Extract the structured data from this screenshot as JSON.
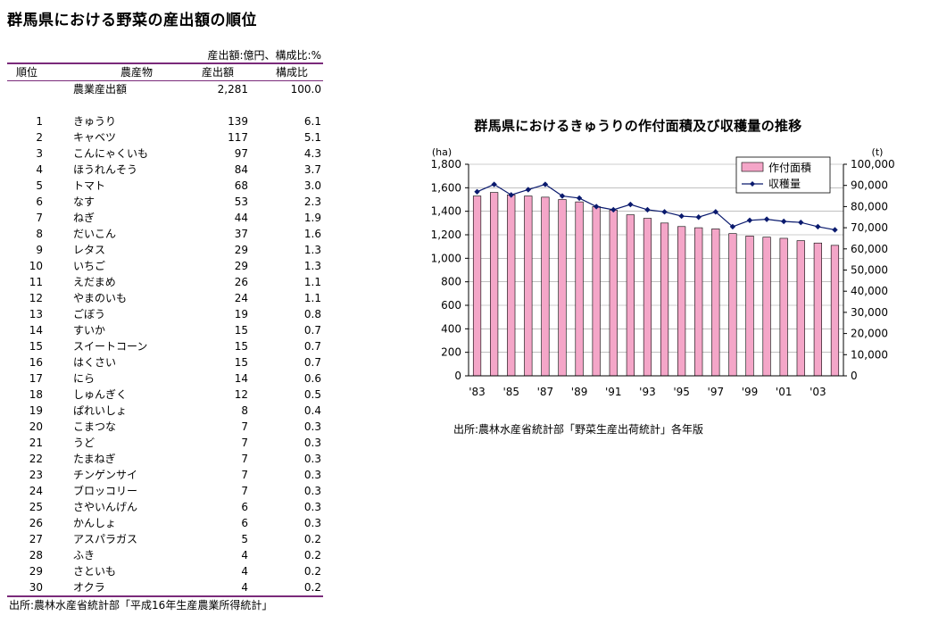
{
  "page_title": "群馬県における野菜の産出額の順位",
  "table": {
    "unit_note": "産出額:億円、構成比:%",
    "headers": {
      "rank": "順位",
      "product": "農産物",
      "amount": "産出額",
      "share": "構成比"
    },
    "total": {
      "label": "農業産出額",
      "amount": "2,281",
      "share": "100.0"
    },
    "rows": [
      {
        "rank": "1",
        "name": "きゅうり",
        "amount": "139",
        "share": "6.1"
      },
      {
        "rank": "2",
        "name": "キャベツ",
        "amount": "117",
        "share": "5.1"
      },
      {
        "rank": "3",
        "name": "こんにゃくいも",
        "amount": "97",
        "share": "4.3"
      },
      {
        "rank": "4",
        "name": "ほうれんそう",
        "amount": "84",
        "share": "3.7"
      },
      {
        "rank": "5",
        "name": "トマト",
        "amount": "68",
        "share": "3.0"
      },
      {
        "rank": "6",
        "name": "なす",
        "amount": "53",
        "share": "2.3"
      },
      {
        "rank": "7",
        "name": "ねぎ",
        "amount": "44",
        "share": "1.9"
      },
      {
        "rank": "8",
        "name": "だいこん",
        "amount": "37",
        "share": "1.6"
      },
      {
        "rank": "9",
        "name": "レタス",
        "amount": "29",
        "share": "1.3"
      },
      {
        "rank": "10",
        "name": "いちご",
        "amount": "29",
        "share": "1.3"
      },
      {
        "rank": "11",
        "name": "えだまめ",
        "amount": "26",
        "share": "1.1"
      },
      {
        "rank": "12",
        "name": "やまのいも",
        "amount": "24",
        "share": "1.1"
      },
      {
        "rank": "13",
        "name": "ごぼう",
        "amount": "19",
        "share": "0.8"
      },
      {
        "rank": "14",
        "name": "すいか",
        "amount": "15",
        "share": "0.7"
      },
      {
        "rank": "15",
        "name": "スイートコーン",
        "amount": "15",
        "share": "0.7"
      },
      {
        "rank": "16",
        "name": "はくさい",
        "amount": "15",
        "share": "0.7"
      },
      {
        "rank": "17",
        "name": "にら",
        "amount": "14",
        "share": "0.6"
      },
      {
        "rank": "18",
        "name": "しゅんぎく",
        "amount": "12",
        "share": "0.5"
      },
      {
        "rank": "19",
        "name": "ぱれいしょ",
        "amount": "8",
        "share": "0.4"
      },
      {
        "rank": "20",
        "name": "こまつな",
        "amount": "7",
        "share": "0.3"
      },
      {
        "rank": "21",
        "name": "うど",
        "amount": "7",
        "share": "0.3"
      },
      {
        "rank": "22",
        "name": "たまねぎ",
        "amount": "7",
        "share": "0.3"
      },
      {
        "rank": "23",
        "name": "チンゲンサイ",
        "amount": "7",
        "share": "0.3"
      },
      {
        "rank": "24",
        "name": "ブロッコリー",
        "amount": "7",
        "share": "0.3"
      },
      {
        "rank": "25",
        "name": "さやいんげん",
        "amount": "6",
        "share": "0.3"
      },
      {
        "rank": "26",
        "name": "かんしょ",
        "amount": "6",
        "share": "0.3"
      },
      {
        "rank": "27",
        "name": "アスパラガス",
        "amount": "5",
        "share": "0.2"
      },
      {
        "rank": "28",
        "name": "ふき",
        "amount": "4",
        "share": "0.2"
      },
      {
        "rank": "29",
        "name": "さといも",
        "amount": "4",
        "share": "0.2"
      },
      {
        "rank": "30",
        "name": "オクラ",
        "amount": "4",
        "share": "0.2"
      }
    ],
    "source": "出所:農林水産省統計部「平成16年生産農業所得統計」"
  },
  "chart_data": {
    "type": "bar",
    "title": "群馬県におけるきゅうりの作付面積及び収穫量の推移",
    "x": [
      1983,
      1984,
      1985,
      1986,
      1987,
      1988,
      1989,
      1990,
      1991,
      1992,
      1993,
      1994,
      1995,
      1996,
      1997,
      1998,
      1999,
      2000,
      2001,
      2002,
      2003,
      2004
    ],
    "x_tick_labels": [
      "'83",
      "'85",
      "'87",
      "'89",
      "'91",
      "'93",
      "'95",
      "'97",
      "'99",
      "'01",
      "'03"
    ],
    "x_tick_years": [
      1983,
      1985,
      1987,
      1989,
      1991,
      1993,
      1995,
      1997,
      1999,
      2001,
      2003
    ],
    "y_left_unit": "(ha)",
    "y_right_unit": "(t)",
    "y_left_range": [
      0,
      1800
    ],
    "y_right_range": [
      0,
      100000
    ],
    "y_left_ticks": [
      "0",
      "200",
      "400",
      "600",
      "800",
      "1,000",
      "1,200",
      "1,400",
      "1,600",
      "1,800"
    ],
    "y_right_ticks": [
      "0",
      "10,000",
      "20,000",
      "30,000",
      "40,000",
      "50,000",
      "60,000",
      "70,000",
      "80,000",
      "90,000",
      "100,000"
    ],
    "grid": "horizontal",
    "legend_position": "top-right",
    "series": [
      {
        "name": "作付面積",
        "kind": "bar",
        "axis": "left",
        "color": "#f4a6c8",
        "values": [
          1530,
          1560,
          1540,
          1530,
          1520,
          1500,
          1480,
          1440,
          1410,
          1370,
          1340,
          1300,
          1270,
          1260,
          1250,
          1210,
          1190,
          1180,
          1170,
          1150,
          1130,
          1110
        ]
      },
      {
        "name": "収穫量",
        "kind": "line",
        "axis": "right",
        "color": "#0a1a6e",
        "values": [
          87000,
          90500,
          85500,
          88000,
          90500,
          85000,
          84000,
          80000,
          78500,
          81000,
          78500,
          77500,
          75500,
          75000,
          77500,
          70500,
          73500,
          74000,
          73000,
          72500,
          70500,
          69000
        ]
      }
    ]
  },
  "chart_source": "出所:農林水産省統計部「野菜生産出荷統計」各年版"
}
